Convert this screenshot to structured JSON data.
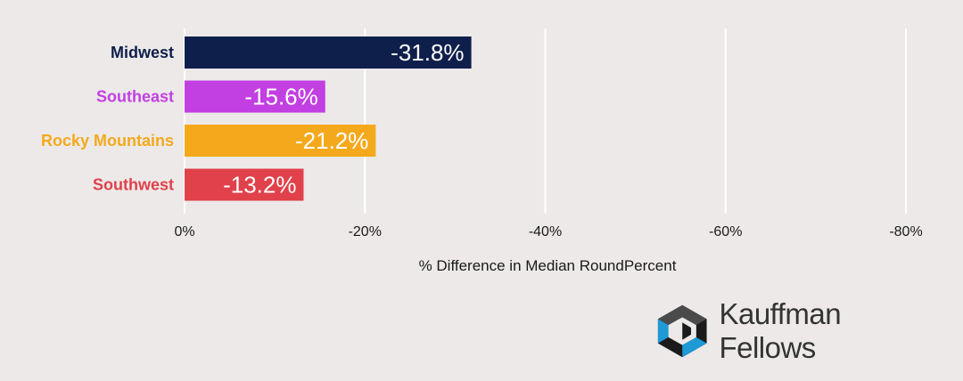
{
  "chart_data": {
    "type": "bar",
    "orientation": "horizontal",
    "categories": [
      "Midwest",
      "Southeast",
      "Rocky Mountains",
      "Southwest"
    ],
    "values": [
      -31.8,
      -15.6,
      -21.2,
      -13.2
    ],
    "data_labels": [
      "-31.8%",
      "-15.6%",
      "-21.2%",
      "-13.2%"
    ],
    "colors": [
      "#0f1f4b",
      "#c23fe2",
      "#f4a91c",
      "#e0414b"
    ],
    "xlabel": "% Difference in Median RoundPercent",
    "ylabel": "",
    "xlim": [
      0,
      -80
    ],
    "ticks": [
      0,
      -20,
      -40,
      -60,
      -80
    ],
    "tick_labels": [
      "0%",
      "-20%",
      "-40%",
      "-60%",
      "-80%"
    ],
    "grid": true,
    "legend": "none"
  },
  "branding": {
    "logo_text": "Kauffman Fellows",
    "logo_colors": [
      "#1e9ad6",
      "#1b1b1b",
      "#4a4a4a"
    ]
  }
}
